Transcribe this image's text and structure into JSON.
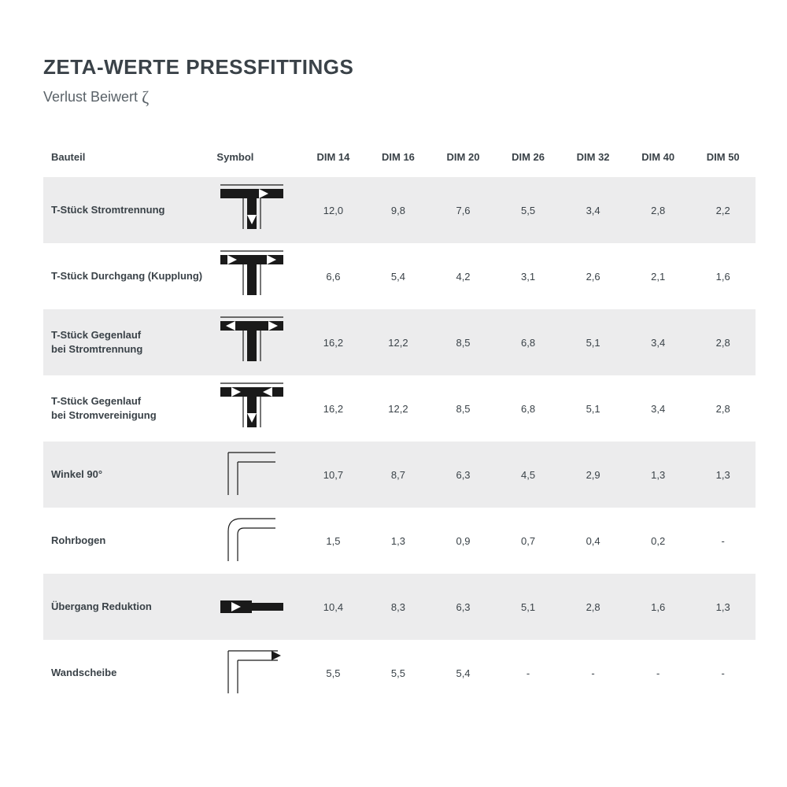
{
  "title": "ZETA-WERTE PRESSFITTINGS",
  "subtitle_prefix": "Verlust Beiwert ",
  "subtitle_symbol": "ζ",
  "colors": {
    "text": "#3a4248",
    "subtext": "#5a6268",
    "stripe": "#ececed",
    "bg": "#ffffff",
    "ink": "#1a1a1a"
  },
  "columns": [
    "Bauteil",
    "Symbol",
    "DIM 14",
    "DIM 16",
    "DIM 20",
    "DIM 26",
    "DIM 32",
    "DIM 40",
    "DIM 50"
  ],
  "rows": [
    {
      "label": "T-Stück Stromtrennung",
      "symbol": "t_split_down",
      "values": [
        "12,0",
        "9,8",
        "7,6",
        "5,5",
        "3,4",
        "2,8",
        "2,2"
      ]
    },
    {
      "label": "T-Stück Durchgang (Kupplung)",
      "symbol": "t_through",
      "values": [
        "6,6",
        "5,4",
        "4,2",
        "3,1",
        "2,6",
        "2,1",
        "1,6"
      ]
    },
    {
      "label": "T-Stück Gegenlauf\nbei Stromtrennung",
      "symbol": "t_counter_split",
      "values": [
        "16,2",
        "12,2",
        "8,5",
        "6,8",
        "5,1",
        "3,4",
        "2,8"
      ]
    },
    {
      "label": "T-Stück Gegenlauf\nbei Stromvereinigung",
      "symbol": "t_counter_merge",
      "values": [
        "16,2",
        "12,2",
        "8,5",
        "6,8",
        "5,1",
        "3,4",
        "2,8"
      ]
    },
    {
      "label": "Winkel 90°",
      "symbol": "elbow90",
      "values": [
        "10,7",
        "8,7",
        "6,3",
        "4,5",
        "2,9",
        "1,3",
        "1,3"
      ]
    },
    {
      "label": "Rohrbogen",
      "symbol": "bend",
      "values": [
        "1,5",
        "1,3",
        "0,9",
        "0,7",
        "0,4",
        "0,2",
        "-"
      ]
    },
    {
      "label": "Übergang Reduktion",
      "symbol": "reduction",
      "values": [
        "10,4",
        "8,3",
        "6,3",
        "5,1",
        "2,8",
        "1,6",
        "1,3"
      ]
    },
    {
      "label": "Wandscheibe",
      "symbol": "wallplate",
      "values": [
        "5,5",
        "5,5",
        "5,4",
        "-",
        "-",
        "-",
        "-"
      ]
    }
  ],
  "symbol_style": {
    "stroke": "#1a1a1a",
    "thick": 12,
    "thin": 1.2,
    "arrow_fill": "#ffffff"
  }
}
